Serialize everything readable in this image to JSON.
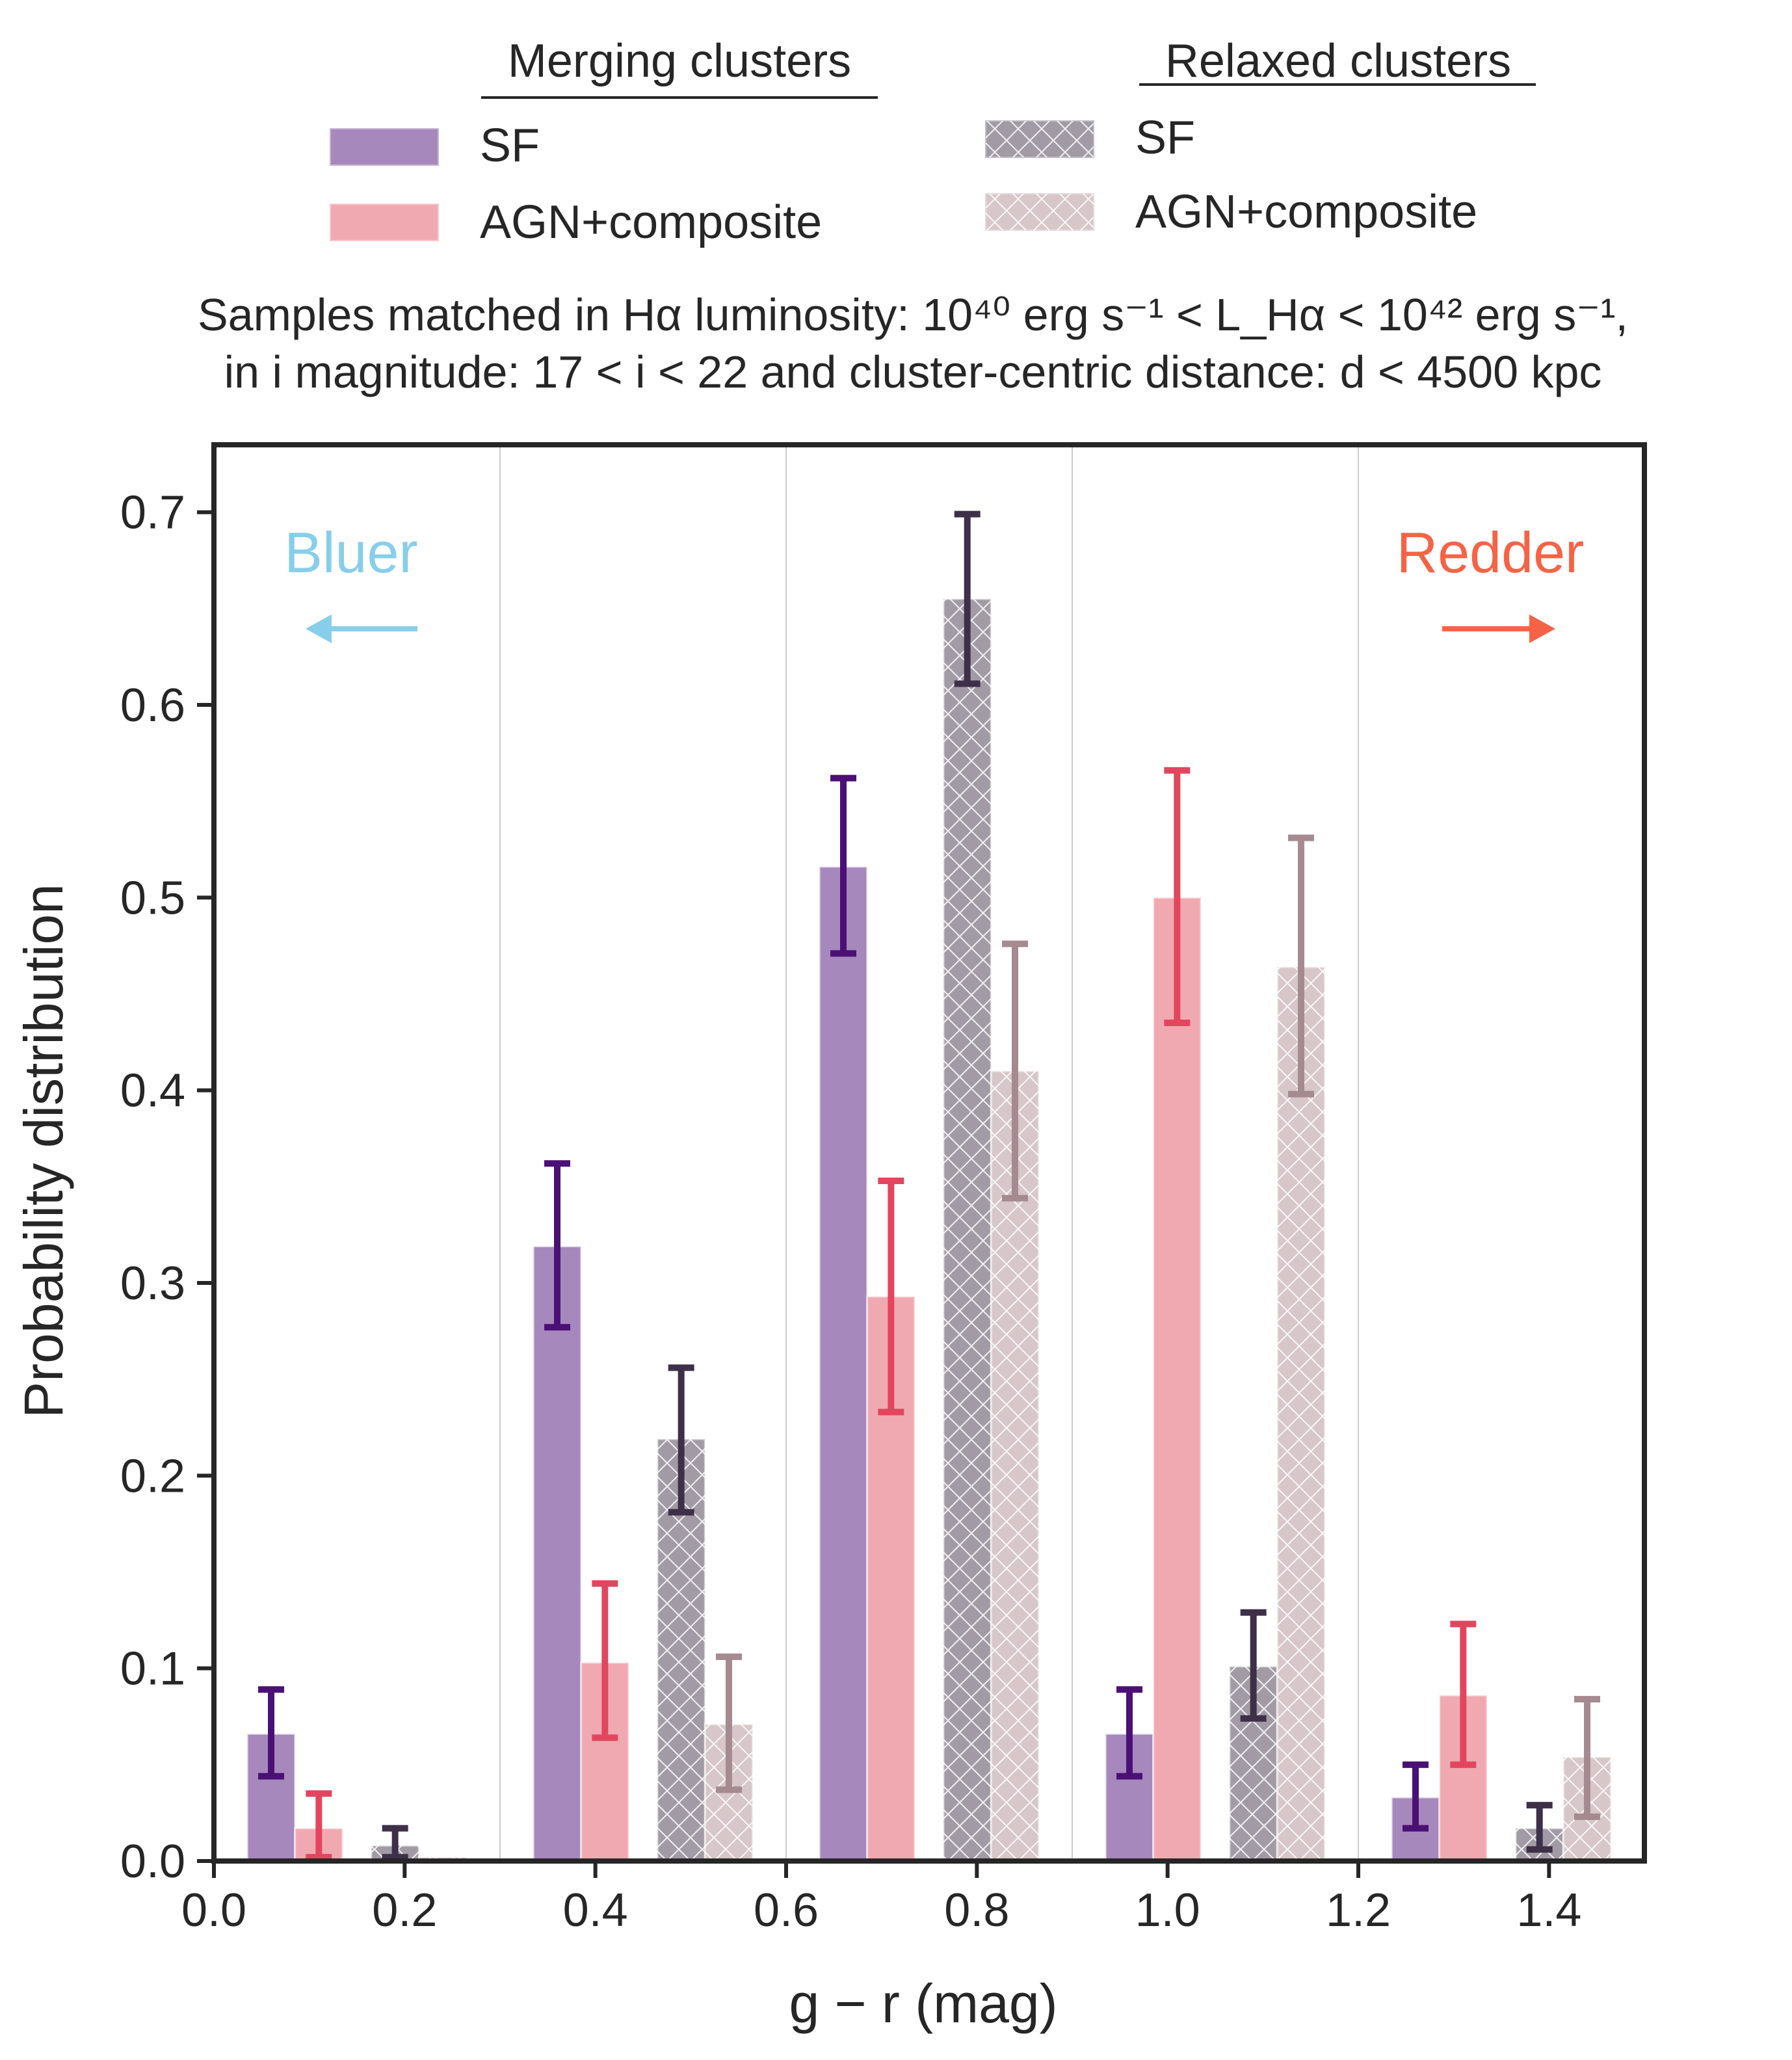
{
  "chart_data": {
    "type": "bar",
    "title_line1": "Samples matched in Hα luminosity: 10⁴⁰ erg s⁻¹ < L_Hα < 10⁴² erg s⁻¹,",
    "title_line2": "in i magnitude: 17 < i < 22 and cluster-centric distance: d < 4500 kpc",
    "xlabel": "g − r (mag)",
    "ylabel": "Probability distribution",
    "xlim": [
      0.0,
      1.5
    ],
    "ylim": [
      0.0,
      0.735
    ],
    "xticks": [
      "0.0",
      "0.2",
      "0.4",
      "0.6",
      "0.8",
      "1.0",
      "1.2",
      "1.4"
    ],
    "yticks": [
      "0.0",
      "0.1",
      "0.2",
      "0.3",
      "0.4",
      "0.5",
      "0.6",
      "0.7"
    ],
    "bin_edges": [
      0.0,
      0.3,
      0.6,
      0.9,
      1.2,
      1.5
    ],
    "legend": {
      "merging_title": "Merging clusters",
      "relaxed_title": "Relaxed clusters",
      "merging_sf": "SF",
      "merging_agn": "AGN+composite",
      "relaxed_sf": "SF",
      "relaxed_agn": "AGN+composite"
    },
    "annotations": {
      "bluer": "Bluer",
      "redder": "Redder"
    },
    "series": [
      {
        "name": "Merging SF",
        "fill": "#a688bd",
        "err_color": "#4b1075",
        "hatch": false,
        "centers": [
          0.06,
          0.36,
          0.66,
          0.96,
          1.26
        ],
        "values": [
          0.066,
          0.319,
          0.516,
          0.066,
          0.033
        ],
        "err_low": [
          0.044,
          0.277,
          0.471,
          0.044,
          0.017
        ],
        "err_high": [
          0.089,
          0.362,
          0.562,
          0.089,
          0.05
        ]
      },
      {
        "name": "Merging AGN+composite",
        "fill": "#f1a9b1",
        "err_color": "#e2465f",
        "hatch": false,
        "centers": [
          0.11,
          0.41,
          0.71,
          1.01,
          1.31
        ],
        "values": [
          0.017,
          0.103,
          0.293,
          0.5,
          0.086
        ],
        "err_low": [
          0.002,
          0.064,
          0.233,
          0.435,
          0.05
        ],
        "err_high": [
          0.035,
          0.144,
          0.353,
          0.566,
          0.123
        ]
      },
      {
        "name": "Relaxed SF",
        "fill": "#a29ba6",
        "err_color": "#3e3049",
        "hatch": true,
        "centers": [
          0.19,
          0.49,
          0.79,
          1.09,
          1.39
        ],
        "values": [
          0.008,
          0.219,
          0.655,
          0.101,
          0.017
        ],
        "err_low": [
          0.002,
          0.181,
          0.611,
          0.074,
          0.006
        ],
        "err_high": [
          0.017,
          0.256,
          0.699,
          0.129,
          0.029
        ]
      },
      {
        "name": "Relaxed AGN+composite",
        "fill": "#d7c7c8",
        "err_color": "#a58a8f",
        "hatch": true,
        "centers": [
          0.24,
          0.54,
          0.84,
          1.14,
          1.44
        ],
        "values": [
          0.002,
          0.071,
          0.41,
          0.464,
          0.054
        ],
        "err_low": [
          0.0,
          0.037,
          0.344,
          0.398,
          0.023
        ],
        "err_high": [
          0.0,
          0.106,
          0.476,
          0.531,
          0.084
        ]
      }
    ]
  }
}
